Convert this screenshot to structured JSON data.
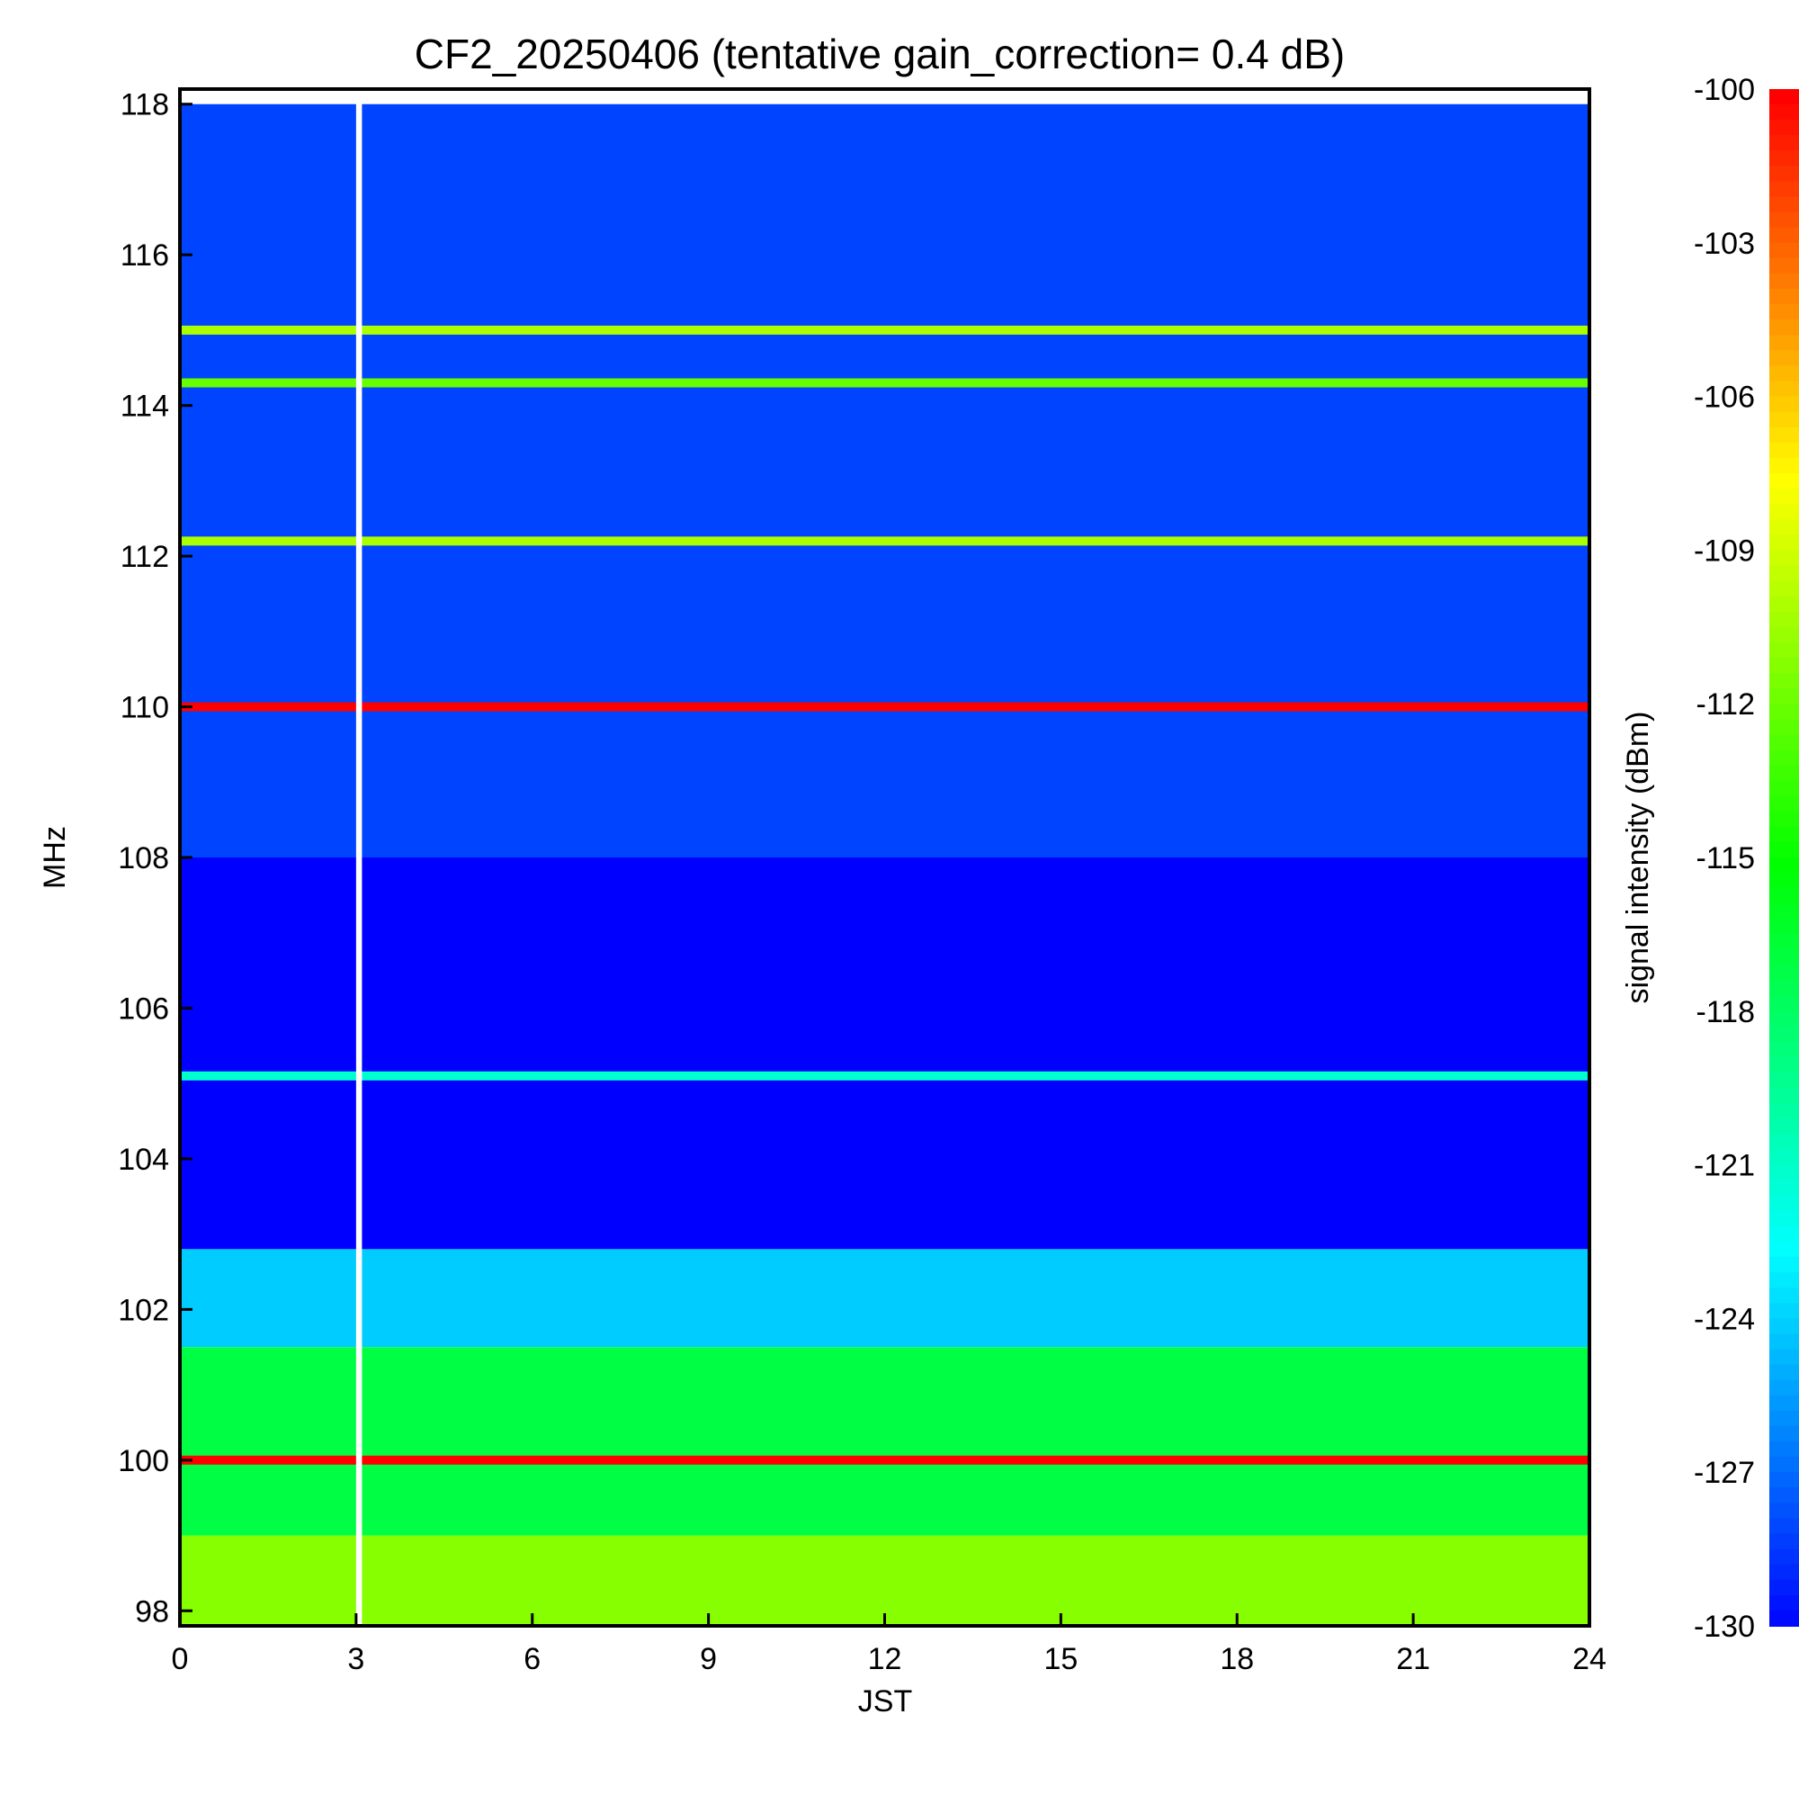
{
  "chart_data": {
    "type": "heatmap",
    "title": "CF2_20250406 (tentative gain_correction=  0.4 dB)",
    "xlabel": "JST",
    "ylabel": "MHz",
    "xlim": [
      0,
      24
    ],
    "ylim": [
      97.8,
      118.2
    ],
    "x_ticks": [
      "0",
      "3",
      "6",
      "9",
      "12",
      "15",
      "18",
      "21",
      "24"
    ],
    "y_ticks": [
      "98",
      "100",
      "102",
      "104",
      "106",
      "108",
      "110",
      "112",
      "114",
      "116",
      "118"
    ],
    "colorbar": {
      "label": "signal intensity (dBm)",
      "range": [
        -130,
        -100
      ],
      "ticks": [
        "-100",
        "-103",
        "-106",
        "-109",
        "-112",
        "-115",
        "-118",
        "-121",
        "-124",
        "-127",
        "-130"
      ],
      "colormap": "rainbow (blue low, red high)"
    },
    "data_gap_jst": [
      3.0,
      3.1
    ],
    "strong_lines_mhz": [
      {
        "freq": 110.0,
        "level_dbm": -100
      },
      {
        "freq": 100.0,
        "level_dbm": -100
      },
      {
        "freq": 112.2,
        "level_dbm": -110
      },
      {
        "freq": 114.3,
        "level_dbm": -112
      },
      {
        "freq": 115.0,
        "level_dbm": -110
      },
      {
        "freq": 105.1,
        "level_dbm": -121
      }
    ],
    "background_level_dbm": [
      {
        "freq_range": [
          108,
          118
        ],
        "level_dbm": -128
      },
      {
        "freq_range": [
          102.8,
          108
        ],
        "level_dbm": -130
      },
      {
        "freq_range": [
          101.5,
          102.8
        ],
        "level_dbm": -124
      },
      {
        "freq_range": [
          99,
          101.5
        ],
        "level_dbm": -117
      },
      {
        "freq_range": [
          97.8,
          99
        ],
        "level_dbm": -111
      }
    ]
  }
}
